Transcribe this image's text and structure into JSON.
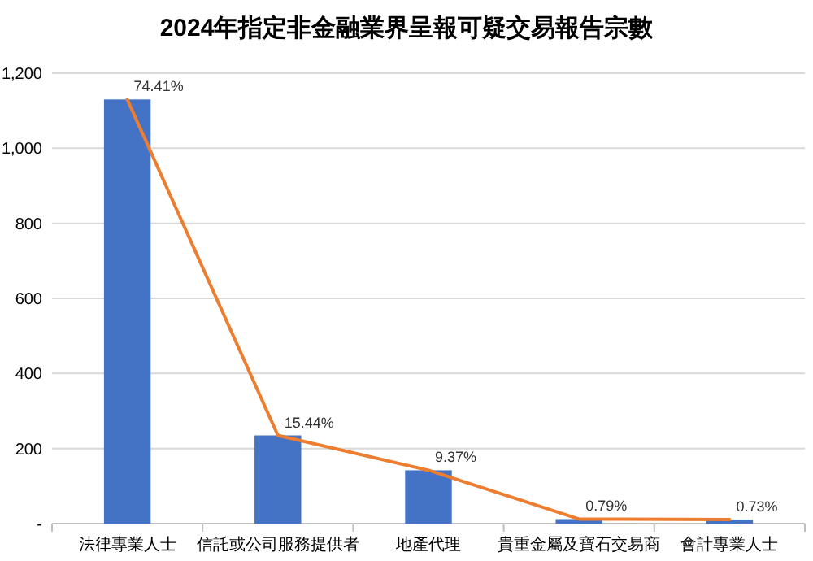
{
  "chart_data": {
    "type": "bar",
    "title": "2024年指定非金融業界呈報可疑交易報告宗數",
    "categories": [
      "法律專業人士",
      "信託或公司服務提供者",
      "地產代理",
      "貴重金屬及寶石交易商",
      "會計專業人士"
    ],
    "series": [
      {
        "type": "bar",
        "color": "#4472c4",
        "values": [
          1130,
          235,
          142,
          12,
          11
        ]
      },
      {
        "type": "line",
        "color": "#ed7d31",
        "values": [
          1130,
          235,
          142,
          12,
          11
        ]
      }
    ],
    "annotations": [
      {
        "text": "74.41%",
        "x": "法律專業人士",
        "y": 1130
      },
      {
        "text": "15.44%",
        "x": "信託或公司服務提供者",
        "y": 235
      },
      {
        "text": "9.37%",
        "x": "地產代理",
        "y": 142
      },
      {
        "text": "0.79%",
        "x": "貴重金屬及寶石交易商",
        "y": 12
      },
      {
        "text": "0.73%",
        "x": "會計專業人士",
        "y": 11
      }
    ],
    "ylim": [
      0,
      1200
    ],
    "yticks": [
      {
        "value": 0,
        "label": "-"
      },
      {
        "value": 200,
        "label": "200"
      },
      {
        "value": 400,
        "label": "400"
      },
      {
        "value": 600,
        "label": "600"
      },
      {
        "value": 800,
        "label": "800"
      },
      {
        "value": 1000,
        "label": "1,000"
      },
      {
        "value": 1200,
        "label": "1,200"
      }
    ],
    "grid": "y"
  }
}
